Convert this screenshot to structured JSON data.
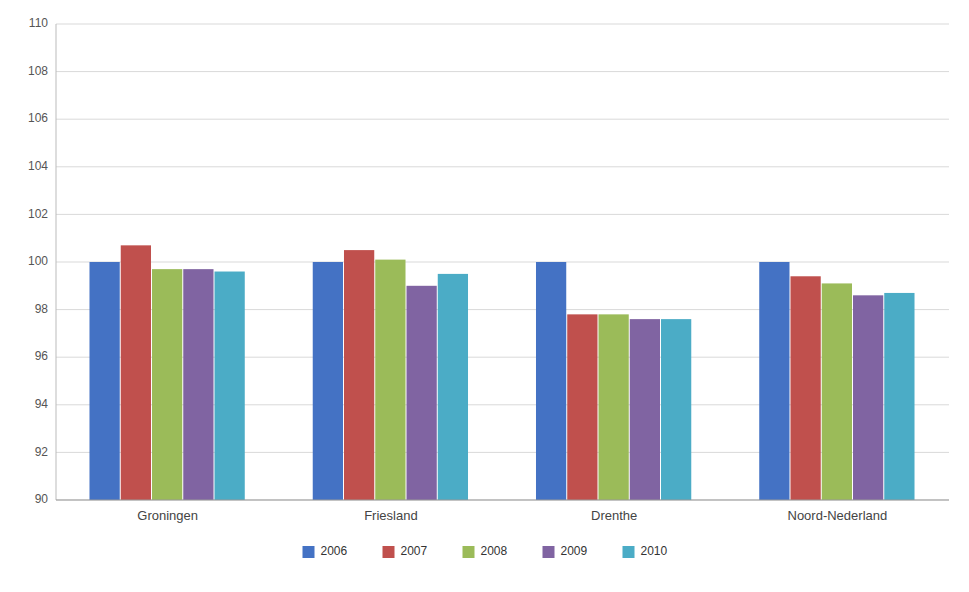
{
  "chart_data": {
    "type": "bar",
    "categories": [
      "Groningen",
      "Friesland",
      "Drenthe",
      "Noord-Nederland"
    ],
    "series": [
      {
        "name": "2006",
        "color": "#4472C4",
        "values": [
          100.0,
          100.0,
          100.0,
          100.0
        ]
      },
      {
        "name": "2007",
        "color": "#C0504D",
        "values": [
          100.7,
          100.5,
          97.8,
          99.4
        ]
      },
      {
        "name": "2008",
        "color": "#9BBB59",
        "values": [
          99.7,
          100.1,
          97.8,
          99.1
        ]
      },
      {
        "name": "2009",
        "color": "#8064A2",
        "values": [
          99.7,
          99.0,
          97.6,
          98.6
        ]
      },
      {
        "name": "2010",
        "color": "#4BACC6",
        "values": [
          99.6,
          99.5,
          97.6,
          98.7
        ]
      }
    ],
    "ylim": [
      90,
      110
    ],
    "yticks": [
      90,
      92,
      94,
      96,
      98,
      100,
      102,
      104,
      106,
      108,
      110
    ],
    "grid": true,
    "legend": "bottom"
  }
}
